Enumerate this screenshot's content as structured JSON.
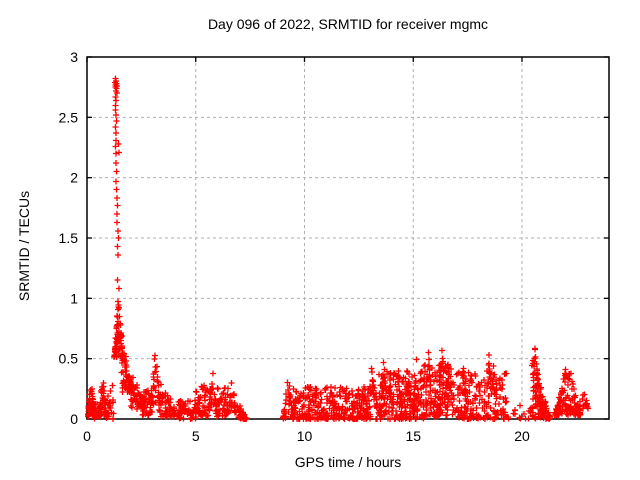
{
  "chart_data": {
    "type": "scatter",
    "title": "Day 096 of 2022, SRMTID for receiver mgmc",
    "xlabel": "GPS time / hours",
    "ylabel": "SRMTID / TECUs",
    "xlim": [
      0,
      24
    ],
    "ylim": [
      0,
      3
    ],
    "xticks": [
      0,
      5,
      10,
      15,
      20
    ],
    "xtick_labels": [
      "0",
      "5",
      "10",
      "15",
      "20"
    ],
    "yticks": [
      0,
      0.5,
      1,
      1.5,
      2,
      2.5,
      3
    ],
    "ytick_labels": [
      "0",
      "0.5",
      "1",
      "1.5",
      "2",
      "2.5",
      "3"
    ],
    "grid": true,
    "legend": "none",
    "marker": "plus",
    "colors": {
      "marker": "#ff0000",
      "grid": "#b0b0b0",
      "axis": "#000000",
      "background": "#ffffff"
    },
    "seed": 96,
    "spike_points": [
      [
        1.31,
        2.82
      ],
      [
        1.34,
        2.8
      ],
      [
        1.29,
        2.79
      ],
      [
        1.36,
        2.78
      ],
      [
        1.32,
        2.77
      ],
      [
        1.38,
        2.76
      ],
      [
        1.3,
        2.75
      ],
      [
        1.35,
        2.74
      ],
      [
        1.33,
        2.72
      ],
      [
        1.37,
        2.7
      ],
      [
        1.31,
        2.67
      ],
      [
        1.34,
        2.64
      ],
      [
        1.32,
        2.6
      ],
      [
        1.3,
        2.56
      ],
      [
        1.33,
        2.52
      ],
      [
        1.35,
        2.47
      ],
      [
        1.32,
        2.42
      ],
      [
        1.34,
        2.37
      ],
      [
        1.33,
        2.31
      ],
      [
        1.45,
        2.28
      ],
      [
        1.32,
        2.26
      ],
      [
        1.48,
        2.21
      ],
      [
        1.34,
        2.2
      ],
      [
        1.33,
        2.12
      ],
      [
        1.35,
        2.05
      ],
      [
        1.34,
        1.97
      ],
      [
        1.36,
        1.9
      ],
      [
        1.38,
        1.83
      ],
      [
        1.4,
        1.77
      ],
      [
        1.37,
        1.7
      ],
      [
        1.39,
        1.63
      ],
      [
        1.42,
        1.56
      ],
      [
        1.44,
        1.5
      ],
      [
        1.41,
        1.43
      ],
      [
        1.43,
        1.36
      ],
      [
        1.4,
        1.15
      ],
      [
        1.46,
        1.08
      ]
    ],
    "clusters": [
      [
        0.02,
        0.35,
        0.02,
        0.36,
        55,
        "peak",
        1.2
      ],
      [
        0.3,
        0.6,
        0.0,
        0.14,
        25,
        "flat",
        1.3
      ],
      [
        0.55,
        0.9,
        0.03,
        0.38,
        40,
        "peak",
        1.1
      ],
      [
        0.85,
        1.25,
        0.0,
        0.3,
        28,
        "flat",
        1.5
      ],
      [
        1.25,
        1.65,
        0.5,
        1.02,
        85,
        "peak",
        0.7
      ],
      [
        1.55,
        2.1,
        0.22,
        0.75,
        60,
        "decay",
        1.0
      ],
      [
        2.0,
        2.65,
        0.08,
        0.45,
        60,
        "decay",
        1.2
      ],
      [
        2.55,
        3.0,
        0.03,
        0.25,
        35,
        "flat",
        1.3
      ],
      [
        2.95,
        3.35,
        0.12,
        0.63,
        35,
        "peak",
        0.8
      ],
      [
        3.3,
        4.2,
        0.02,
        0.38,
        70,
        "decay",
        1.3
      ],
      [
        4.2,
        5.0,
        0.0,
        0.16,
        55,
        "flat",
        1.3
      ],
      [
        5.0,
        5.65,
        0.02,
        0.28,
        50,
        "flat",
        1.2
      ],
      [
        5.6,
        5.95,
        0.08,
        0.46,
        28,
        "peak",
        0.9
      ],
      [
        5.9,
        6.5,
        0.02,
        0.26,
        45,
        "flat",
        1.2
      ],
      [
        6.5,
        6.85,
        0.05,
        0.36,
        28,
        "peak",
        1.0
      ],
      [
        6.8,
        7.35,
        0.0,
        0.2,
        40,
        "decay",
        1.3
      ],
      [
        9.0,
        9.5,
        0.0,
        0.37,
        35,
        "peak",
        1.1
      ],
      [
        9.4,
        13.0,
        0.0,
        0.27,
        330,
        "flat",
        1.6
      ],
      [
        13.0,
        15.5,
        0.0,
        0.4,
        240,
        "flat",
        1.5
      ],
      [
        13.0,
        13.2,
        0.2,
        0.52,
        12,
        "peak",
        0.8
      ],
      [
        13.55,
        13.75,
        0.2,
        0.56,
        12,
        "peak",
        0.8
      ],
      [
        13.85,
        14.0,
        0.18,
        0.5,
        10,
        "peak",
        0.8
      ],
      [
        14.25,
        14.4,
        0.15,
        0.46,
        10,
        "peak",
        0.8
      ],
      [
        14.65,
        14.85,
        0.2,
        0.52,
        12,
        "peak",
        0.8
      ],
      [
        15.05,
        15.25,
        0.2,
        0.55,
        12,
        "peak",
        0.8
      ],
      [
        15.5,
        16.8,
        0.02,
        0.45,
        140,
        "flat",
        1.3
      ],
      [
        15.6,
        15.8,
        0.25,
        0.6,
        12,
        "peak",
        0.8
      ],
      [
        16.2,
        16.45,
        0.28,
        0.65,
        14,
        "peak",
        0.8
      ],
      [
        16.5,
        16.65,
        0.25,
        0.58,
        10,
        "peak",
        0.8
      ],
      [
        16.8,
        19.3,
        0.0,
        0.4,
        190,
        "flat",
        1.5
      ],
      [
        17.25,
        17.4,
        0.2,
        0.47,
        10,
        "peak",
        0.8
      ],
      [
        18.4,
        18.55,
        0.25,
        0.57,
        12,
        "peak",
        0.8
      ],
      [
        18.6,
        18.75,
        0.2,
        0.5,
        10,
        "peak",
        0.8
      ],
      [
        19.3,
        20.4,
        0.0,
        0.12,
        16,
        "flat",
        1.5
      ],
      [
        20.45,
        21.3,
        0.0,
        0.55,
        110,
        "decay",
        1.1
      ],
      [
        20.5,
        20.72,
        0.28,
        0.73,
        18,
        "peak",
        0.7
      ],
      [
        21.5,
        22.7,
        0.03,
        0.5,
        130,
        "peak",
        1.2
      ],
      [
        22.6,
        23.05,
        0.08,
        0.3,
        22,
        "peak",
        1.0
      ]
    ]
  }
}
